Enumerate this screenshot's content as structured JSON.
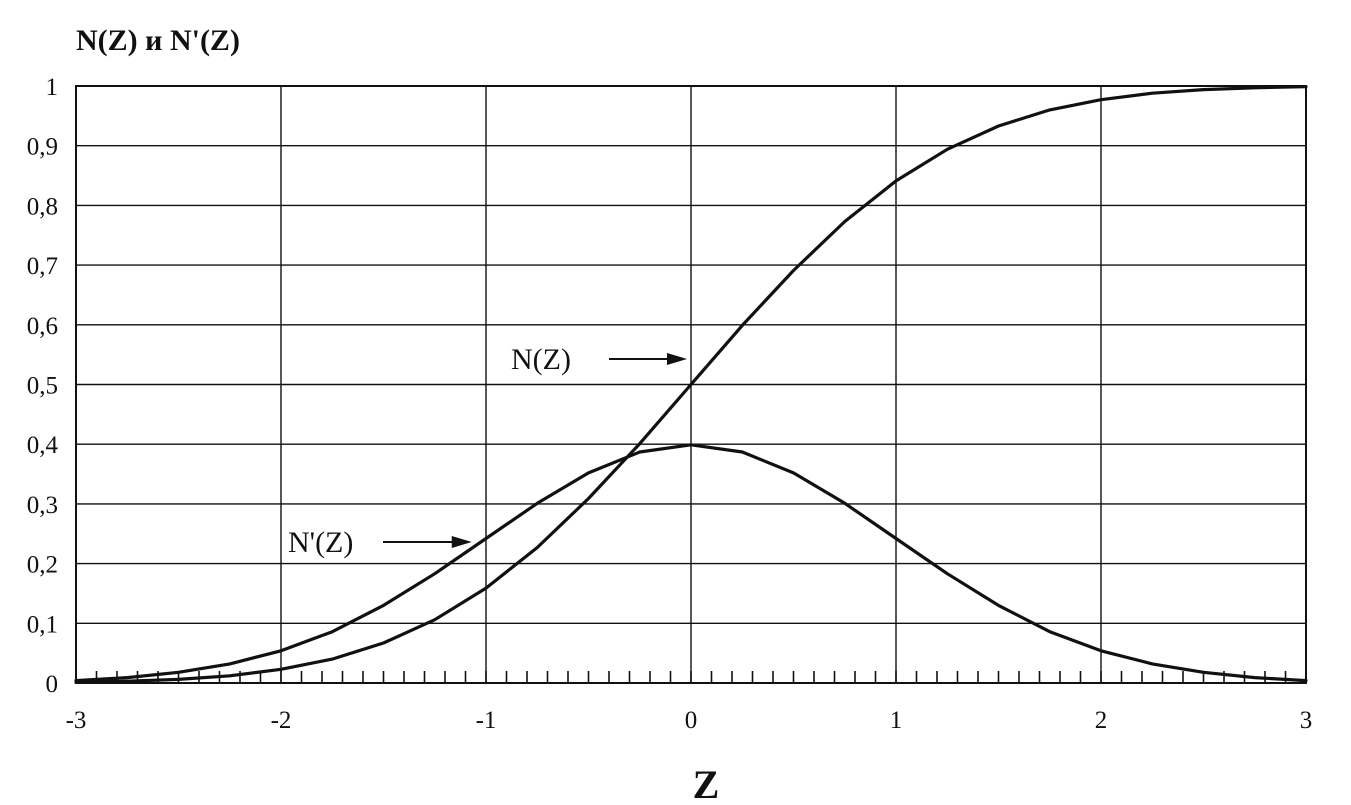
{
  "chart_data": {
    "type": "line",
    "ylabel": "N(Z) и N'(Z)",
    "xlabel": "Z",
    "xlim": [
      -3,
      3
    ],
    "ylim": [
      0,
      1
    ],
    "x_ticks": [
      "-3",
      "-2",
      "-1",
      "0",
      "1",
      "2",
      "3"
    ],
    "y_ticks": [
      "0",
      "0,1",
      "0,2",
      "0,3",
      "0,4",
      "0,5",
      "0,6",
      "0,7",
      "0,8",
      "0,9",
      "1"
    ],
    "grid": true,
    "x_minor_ticks_per_unit": 10,
    "series": [
      {
        "name": "N(Z)",
        "x": [
          -3,
          -2.75,
          -2.5,
          -2.25,
          -2,
          -1.75,
          -1.5,
          -1.25,
          -1,
          -0.75,
          -0.5,
          -0.25,
          0,
          0.25,
          0.5,
          0.75,
          1,
          1.25,
          1.5,
          1.75,
          2,
          2.25,
          2.5,
          2.75,
          3
        ],
        "values": [
          0.001,
          0.003,
          0.006,
          0.012,
          0.023,
          0.04,
          0.067,
          0.106,
          0.159,
          0.227,
          0.309,
          0.401,
          0.5,
          0.599,
          0.691,
          0.773,
          0.841,
          0.894,
          0.933,
          0.96,
          0.977,
          0.988,
          0.994,
          0.997,
          0.999
        ]
      },
      {
        "name": "N'(Z)",
        "x": [
          -3,
          -2.75,
          -2.5,
          -2.25,
          -2,
          -1.75,
          -1.5,
          -1.25,
          -1,
          -0.75,
          -0.5,
          -0.25,
          0,
          0.25,
          0.5,
          0.75,
          1,
          1.25,
          1.5,
          1.75,
          2,
          2.25,
          2.5,
          2.75,
          3
        ],
        "values": [
          0.004,
          0.009,
          0.018,
          0.032,
          0.054,
          0.086,
          0.13,
          0.183,
          0.242,
          0.301,
          0.352,
          0.387,
          0.399,
          0.387,
          0.352,
          0.301,
          0.242,
          0.183,
          0.13,
          0.086,
          0.054,
          0.032,
          0.018,
          0.009,
          0.004
        ]
      }
    ],
    "annotations": [
      {
        "text": "N(Z)",
        "points_to": [
          0,
          0.53
        ]
      },
      {
        "text": "N'(Z)",
        "points_to": [
          -1.05,
          0.23
        ]
      }
    ]
  }
}
